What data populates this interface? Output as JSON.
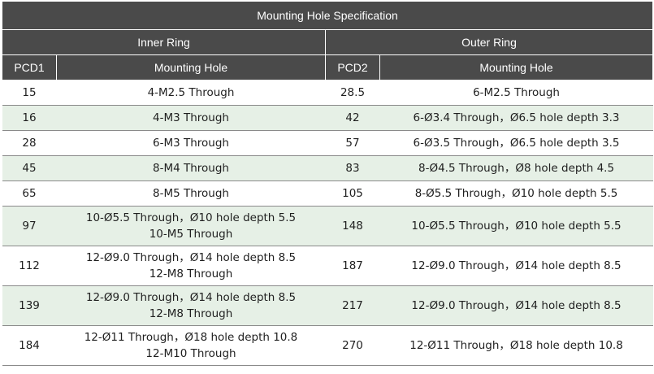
{
  "table": {
    "title": "Mounting Hole Specification",
    "inner_ring_header": "Inner Ring",
    "outer_ring_header": "Outer Ring",
    "pcd1_header": "PCD1",
    "inner_mounting_header": "Mounting Hole",
    "pcd2_header": "PCD2",
    "outer_mounting_header": "Mounting Hole",
    "rows": [
      {
        "pcd1": "15",
        "inner": [
          "4-M2.5 Through"
        ],
        "pcd2": "28.5",
        "outer": "6-M2.5 Through"
      },
      {
        "pcd1": "16",
        "inner": [
          "4-M3 Through"
        ],
        "pcd2": "42",
        "outer": "6-Ø3.4 Through，Ø6.5 hole depth 3.3"
      },
      {
        "pcd1": "28",
        "inner": [
          "6-M3 Through"
        ],
        "pcd2": "57",
        "outer": "6-Ø3.5 Through，Ø6.5 hole depth 3.5"
      },
      {
        "pcd1": "45",
        "inner": [
          "8-M4 Through"
        ],
        "pcd2": "83",
        "outer": "8-Ø4.5 Through，Ø8 hole depth 4.5"
      },
      {
        "pcd1": "65",
        "inner": [
          "8-M5 Through"
        ],
        "pcd2": "105",
        "outer": "8-Ø5.5 Through，Ø10 hole depth 5.5"
      },
      {
        "pcd1": "97",
        "inner": [
          "10-Ø5.5 Through，Ø10 hole depth 5.5",
          "10-M5 Through"
        ],
        "pcd2": "148",
        "outer": "10-Ø5.5 Through，Ø10 hole depth 5.5"
      },
      {
        "pcd1": "112",
        "inner": [
          "12-Ø9.0 Through，Ø14 hole depth 8.5",
          "12-M8 Through"
        ],
        "pcd2": "187",
        "outer": "12-Ø9.0 Through，Ø14 hole depth 8.5"
      },
      {
        "pcd1": "139",
        "inner": [
          "12-Ø9.0 Through，Ø14 hole depth 8.5",
          "12-M8 Through"
        ],
        "pcd2": "217",
        "outer": "12-Ø9.0 Through，Ø14 hole depth 8.5"
      },
      {
        "pcd1": "184",
        "inner": [
          "12-Ø11 Through，Ø18 hole depth 10.8",
          "12-M10 Through"
        ],
        "pcd2": "270",
        "outer": "12-Ø11 Through，Ø18 hole depth 10.8"
      }
    ]
  },
  "colors": {
    "header_bg": "#4a4a4a",
    "header_text": "#ffffff",
    "stripe_bg": "#e6f0e6",
    "row_border": "#8a8a8a"
  }
}
